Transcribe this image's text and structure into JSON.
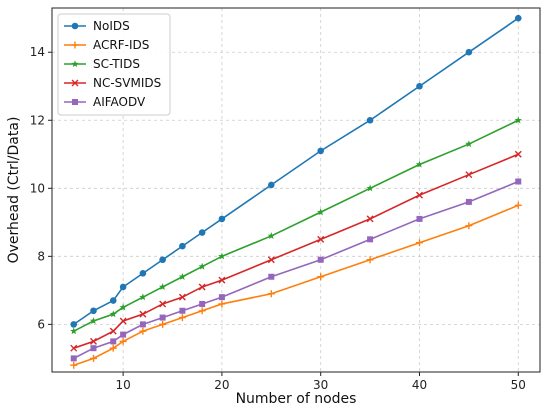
{
  "chart_data": {
    "type": "line",
    "title": "",
    "xlabel": "Number of nodes",
    "ylabel": "Overhead (Ctrl/Data)",
    "xlim": [
      2.8,
      52.2
    ],
    "ylim": [
      4.6,
      15.3
    ],
    "xticks": [
      10,
      20,
      30,
      40,
      50
    ],
    "yticks": [
      6,
      8,
      10,
      12,
      14
    ],
    "grid": true,
    "legend_position": "top-left",
    "series": [
      {
        "name": "NoIDS",
        "color": "#1f77b4",
        "marker": "circle",
        "x": [
          5,
          7,
          9,
          10,
          12,
          14,
          16,
          18,
          20,
          25,
          30,
          35,
          40,
          45,
          50
        ],
        "y": [
          6.0,
          6.4,
          6.7,
          7.1,
          7.5,
          7.9,
          8.3,
          8.7,
          9.1,
          10.1,
          11.1,
          12.0,
          13.0,
          14.0,
          15.0
        ]
      },
      {
        "name": "ACRF-IDS",
        "color": "#ff7f0e",
        "marker": "plus",
        "x": [
          5,
          7,
          9,
          10,
          12,
          14,
          16,
          18,
          20,
          25,
          30,
          35,
          40,
          45,
          50
        ],
        "y": [
          4.8,
          5.0,
          5.3,
          5.5,
          5.8,
          6.0,
          6.2,
          6.4,
          6.6,
          6.9,
          7.4,
          7.9,
          8.4,
          8.9,
          9.5
        ]
      },
      {
        "name": "SC-TIDS",
        "color": "#2ca02c",
        "marker": "star",
        "x": [
          5,
          7,
          9,
          10,
          12,
          14,
          16,
          18,
          20,
          25,
          30,
          35,
          40,
          45,
          50
        ],
        "y": [
          5.8,
          6.1,
          6.3,
          6.5,
          6.8,
          7.1,
          7.4,
          7.7,
          8.0,
          8.6,
          9.3,
          10.0,
          10.7,
          11.3,
          12.0
        ]
      },
      {
        "name": "NC-SVMIDS",
        "color": "#d62728",
        "marker": "x",
        "x": [
          5,
          7,
          9,
          10,
          12,
          14,
          16,
          18,
          20,
          25,
          30,
          35,
          40,
          45,
          50
        ],
        "y": [
          5.3,
          5.5,
          5.8,
          6.1,
          6.3,
          6.6,
          6.8,
          7.1,
          7.3,
          7.9,
          8.5,
          9.1,
          9.8,
          10.4,
          11.0
        ]
      },
      {
        "name": "AIFAODV",
        "color": "#9467bd",
        "marker": "square",
        "x": [
          5,
          7,
          9,
          10,
          12,
          14,
          16,
          18,
          20,
          25,
          30,
          35,
          40,
          45,
          50
        ],
        "y": [
          5.0,
          5.3,
          5.5,
          5.7,
          6.0,
          6.2,
          6.4,
          6.6,
          6.8,
          7.4,
          7.9,
          8.5,
          9.1,
          9.6,
          10.2
        ]
      }
    ]
  }
}
